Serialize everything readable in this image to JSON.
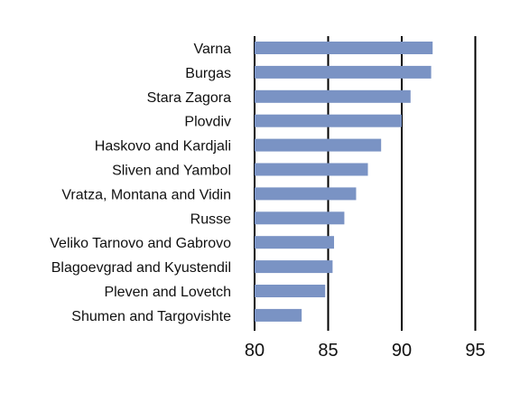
{
  "chart_data": {
    "type": "bar",
    "orientation": "horizontal",
    "title": "",
    "xlabel": "",
    "ylabel": "",
    "categories": [
      "Varna",
      "Burgas",
      "Stara Zagora",
      "Plovdiv",
      "Haskovo and Kardjali",
      "Sliven and Yambol",
      "Vratza, Montana and Vidin",
      "Russe",
      "Veliko Tarnovo and Gabrovo",
      "Blagoevgrad and Kyustendil",
      "Pleven and Lovetch",
      "Shumen and Targovishte"
    ],
    "values": [
      92.1,
      92.0,
      90.6,
      90.0,
      88.6,
      87.7,
      86.9,
      86.1,
      85.4,
      85.3,
      84.8,
      83.2
    ],
    "xlim": [
      80,
      96
    ],
    "xticks": [
      80,
      85,
      90,
      95
    ],
    "grid": true,
    "bar_color": "#7a93c4"
  }
}
